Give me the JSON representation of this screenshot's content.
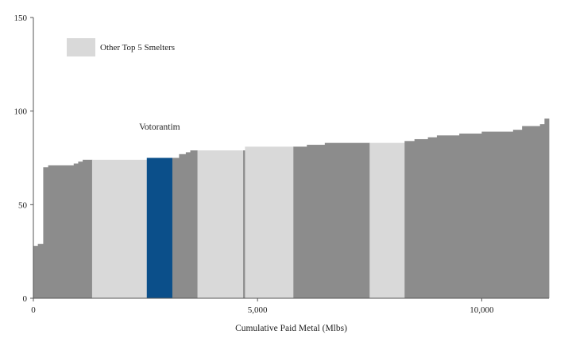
{
  "chart_data": {
    "type": "area",
    "title": "",
    "xlabel": "Cumulative Paid Metal (Mlbs)",
    "ylabel": "",
    "xlim": [
      0,
      11500
    ],
    "ylim": [
      0,
      150
    ],
    "x_ticks": [
      {
        "value": 0,
        "label": "0"
      },
      {
        "value": 5000,
        "label": "5,000"
      },
      {
        "value": 10000,
        "label": "10,000"
      }
    ],
    "y_ticks": [
      {
        "value": 0,
        "label": "0"
      },
      {
        "value": 50,
        "label": "50"
      },
      {
        "value": 100,
        "label": "100"
      },
      {
        "value": 150,
        "label": "150"
      }
    ],
    "grid": false,
    "legend": {
      "position": "top-left",
      "entries": [
        {
          "label": "Other Top 5 Smelters",
          "color": "#d9d9d9"
        }
      ]
    },
    "colors": {
      "other": "#8c8c8c",
      "top5": "#d9d9d9",
      "highlight": "#0b4f8a"
    },
    "annotation": {
      "text": "Votorantim",
      "target_segment": "votorantim"
    },
    "segments": [
      {
        "x0": 0,
        "x1": 100,
        "y": 28,
        "group": "other"
      },
      {
        "x0": 100,
        "x1": 220,
        "y": 29,
        "group": "other"
      },
      {
        "x0": 220,
        "x1": 330,
        "y": 70,
        "group": "other"
      },
      {
        "x0": 330,
        "x1": 900,
        "y": 71,
        "group": "other"
      },
      {
        "x0": 900,
        "x1": 1000,
        "y": 72,
        "group": "other"
      },
      {
        "x0": 1000,
        "x1": 1100,
        "y": 73,
        "group": "other"
      },
      {
        "x0": 1100,
        "x1": 1310,
        "y": 74,
        "group": "other"
      },
      {
        "x0": 1310,
        "x1": 2530,
        "y": 74,
        "group": "top5"
      },
      {
        "x0": 2530,
        "x1": 3100,
        "y": 75,
        "group": "highlight",
        "id": "votorantim"
      },
      {
        "x0": 3100,
        "x1": 3250,
        "y": 75,
        "group": "other"
      },
      {
        "x0": 3250,
        "x1": 3400,
        "y": 77,
        "group": "other"
      },
      {
        "x0": 3400,
        "x1": 3500,
        "y": 78,
        "group": "other"
      },
      {
        "x0": 3500,
        "x1": 3660,
        "y": 79,
        "group": "other"
      },
      {
        "x0": 3660,
        "x1": 4680,
        "y": 79,
        "group": "top5"
      },
      {
        "x0": 4680,
        "x1": 4720,
        "y": 79,
        "group": "other"
      },
      {
        "x0": 4720,
        "x1": 5800,
        "y": 81,
        "group": "top5"
      },
      {
        "x0": 5800,
        "x1": 6100,
        "y": 81,
        "group": "other"
      },
      {
        "x0": 6100,
        "x1": 6500,
        "y": 82,
        "group": "other"
      },
      {
        "x0": 6500,
        "x1": 7500,
        "y": 83,
        "group": "other"
      },
      {
        "x0": 7500,
        "x1": 8280,
        "y": 83,
        "group": "top5"
      },
      {
        "x0": 8280,
        "x1": 8500,
        "y": 84,
        "group": "other"
      },
      {
        "x0": 8500,
        "x1": 8800,
        "y": 85,
        "group": "other"
      },
      {
        "x0": 8800,
        "x1": 9000,
        "y": 86,
        "group": "other"
      },
      {
        "x0": 9000,
        "x1": 9500,
        "y": 87,
        "group": "other"
      },
      {
        "x0": 9500,
        "x1": 10000,
        "y": 88,
        "group": "other"
      },
      {
        "x0": 10000,
        "x1": 10700,
        "y": 89,
        "group": "other"
      },
      {
        "x0": 10700,
        "x1": 10900,
        "y": 90,
        "group": "other"
      },
      {
        "x0": 10900,
        "x1": 11300,
        "y": 92,
        "group": "other"
      },
      {
        "x0": 11300,
        "x1": 11400,
        "y": 93,
        "group": "other"
      },
      {
        "x0": 11400,
        "x1": 11500,
        "y": 96,
        "group": "other"
      }
    ]
  }
}
